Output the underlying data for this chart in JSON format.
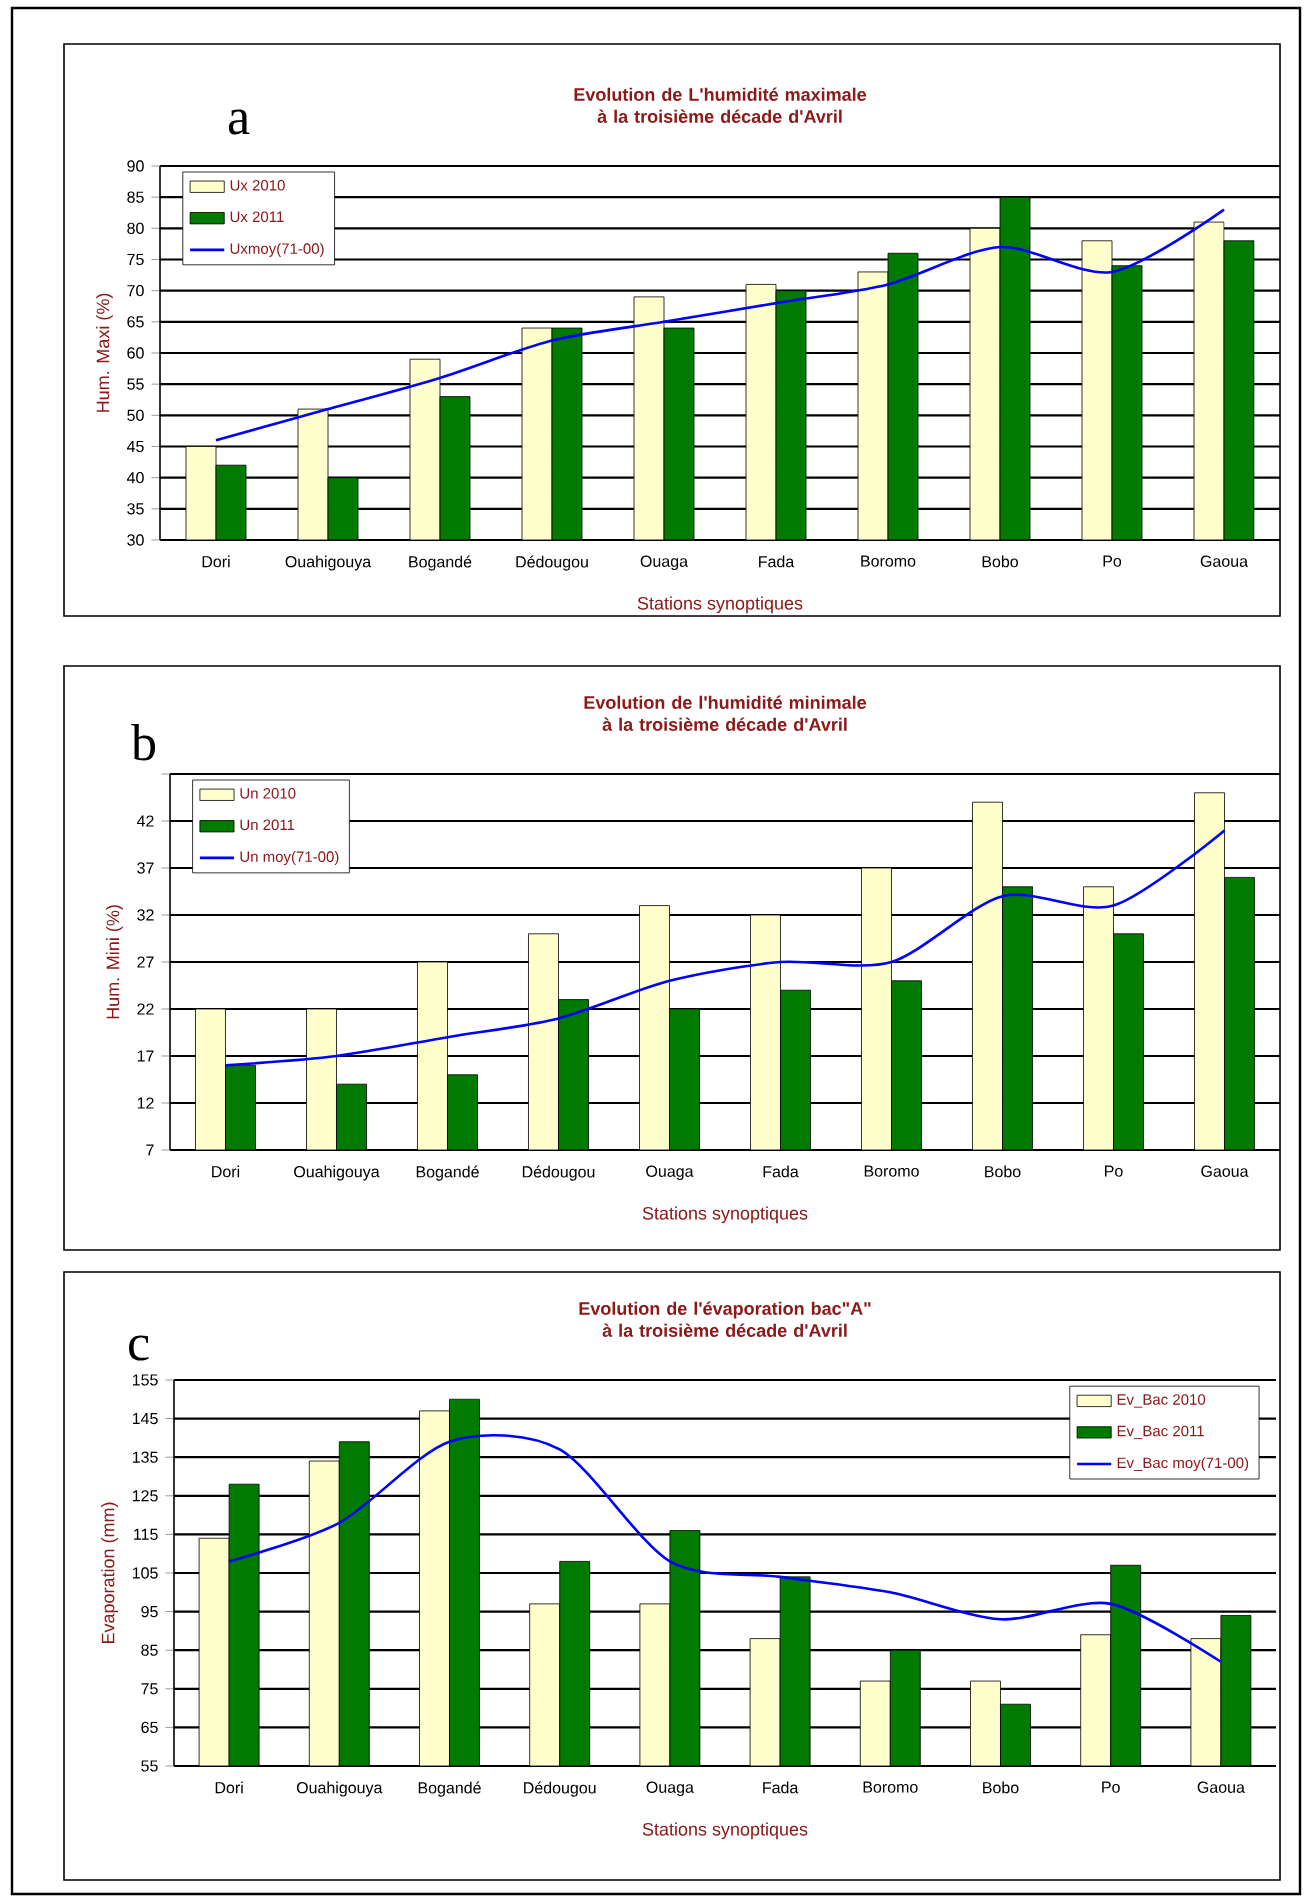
{
  "chart_data": [
    {
      "type": "bar",
      "title": "Evolution de L'humidité maximale  à la troisième  décade d'Avril",
      "xlabel": "Stations synoptiques",
      "ylabel": "Hum. Maxi (%)",
      "annotations": [
        "a"
      ],
      "categories": [
        "Dori",
        "Ouahigouya",
        "Bogandé",
        "Dédougou",
        "Ouaga",
        "Fada",
        "Boromo",
        "Bobo",
        "Po",
        "Gaoua"
      ],
      "series": [
        {
          "name": "Ux 2010",
          "color": "#ffffcc",
          "values": [
            45,
            51,
            59,
            64,
            69,
            71,
            73,
            80,
            78,
            81
          ]
        },
        {
          "name": "Ux 2011",
          "color": "#007a00",
          "values": [
            42,
            40,
            53,
            64,
            64,
            70,
            76,
            85,
            74,
            78
          ]
        },
        {
          "name": "Uxmoy(71-00)",
          "type": "line",
          "color": "#0000ff",
          "values": [
            46,
            51,
            56,
            62,
            65,
            68,
            71,
            77,
            73,
            83
          ]
        }
      ],
      "ylim": [
        30,
        90
      ],
      "yticks": [
        30,
        35,
        40,
        45,
        50,
        55,
        60,
        65,
        70,
        75,
        80,
        85,
        90
      ],
      "grid": "y",
      "legend": "top left"
    },
    {
      "type": "bar",
      "title": "Evolution de l'humidité minimale à la troisième  décade d'Avril",
      "xlabel": "Stations synoptiques",
      "ylabel": "Hum. Mini (%)",
      "annotations": [
        "b"
      ],
      "categories": [
        "Dori",
        "Ouahigouya",
        "Bogandé",
        "Dédougou",
        "Ouaga",
        "Fada",
        "Boromo",
        "Bobo",
        "Po",
        "Gaoua"
      ],
      "series": [
        {
          "name": "Un 2010",
          "color": "#ffffcc",
          "values": [
            22,
            22,
            27,
            30,
            33,
            32,
            37,
            44,
            35,
            45
          ]
        },
        {
          "name": "Un 2011",
          "color": "#007a00",
          "values": [
            16,
            14,
            15,
            23,
            22,
            24,
            25,
            35,
            30,
            36
          ]
        },
        {
          "name": "Un moy(71-00)",
          "type": "line",
          "color": "#0000ff",
          "values": [
            16,
            17,
            19,
            21,
            25,
            27,
            27,
            34,
            33,
            41
          ]
        }
      ],
      "ylim": [
        7,
        47
      ],
      "yticks": [
        7,
        12,
        17,
        22,
        27,
        32,
        37,
        42,
        {
          "value": 47,
          "label": null
        }
      ],
      "grid": "y",
      "legend": "top left"
    },
    {
      "type": "bar",
      "title": "Evolution de l'évaporation bac\"A\" à la troisième  décade d'Avril",
      "xlabel": "Stations synoptiques",
      "ylabel": "Evaporation (mm)",
      "annotations": [
        "c"
      ],
      "categories": [
        "Dori",
        "Ouahigouya",
        "Bogandé",
        "Dédougou",
        "Ouaga",
        "Fada",
        "Boromo",
        "Bobo",
        "Po",
        "Gaoua"
      ],
      "series": [
        {
          "name": "Ev_Bac 2010",
          "color": "#ffffcc",
          "values": [
            114,
            134,
            147,
            97,
            97,
            88,
            77,
            77,
            89,
            88
          ]
        },
        {
          "name": "Ev_Bac 2011",
          "color": "#007a00",
          "values": [
            128,
            139,
            150,
            108,
            116,
            104,
            85,
            71,
            107,
            94
          ]
        },
        {
          "name": "Ev_Bac moy(71-00)",
          "type": "line",
          "color": "#0000ff",
          "values": [
            108,
            118,
            139,
            137,
            108,
            104,
            100,
            93,
            97,
            82
          ]
        }
      ],
      "ylim": [
        55,
        155
      ],
      "yticks": [
        55,
        65,
        75,
        85,
        95,
        105,
        115,
        125,
        135,
        145,
        155
      ],
      "grid": "y",
      "legend": "top right"
    }
  ]
}
